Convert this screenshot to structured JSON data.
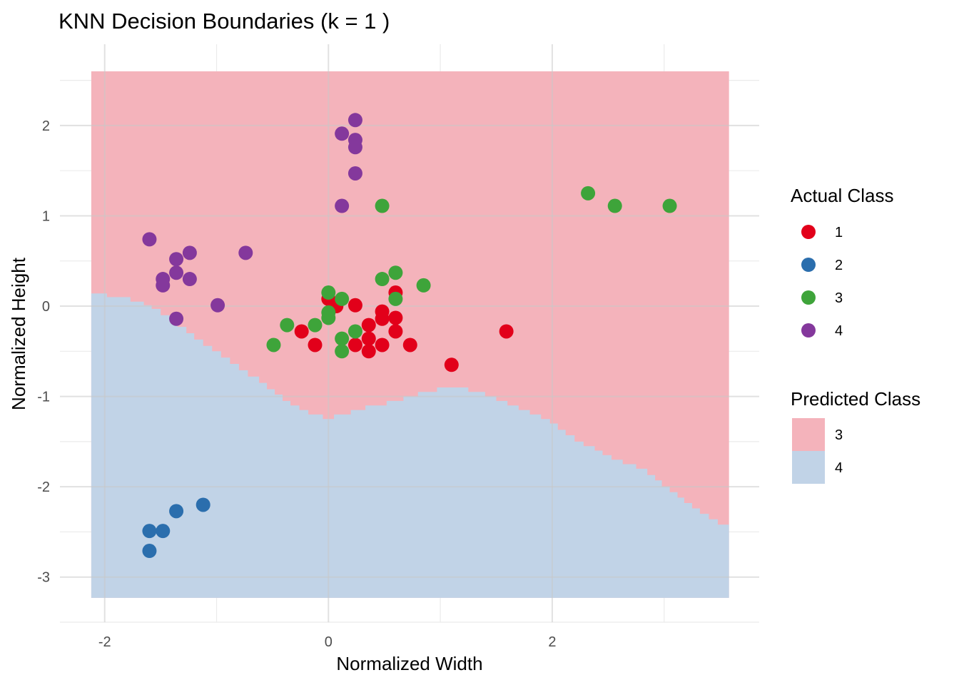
{
  "chart_data": {
    "type": "scatter",
    "title": "KNN Decision Boundaries (k = 1 )",
    "xlabel": "Normalized Width",
    "ylabel": "Normalized Height",
    "xlim": [
      -2.4,
      3.85
    ],
    "ylim": [
      -3.5,
      2.9
    ],
    "x_ticks": [
      -2,
      0,
      2
    ],
    "y_ticks": [
      2,
      1,
      0,
      -1,
      -2,
      -3
    ],
    "grid": true,
    "colors": {
      "region_3": "#f4b3bb",
      "region_4": "#c1d3e7",
      "class_1": "#e2001a",
      "class_2": "#2b6ead",
      "class_3": "#3ea43a",
      "class_4": "#84389c"
    },
    "decision_region": {
      "x_range": [
        -2.12,
        3.58
      ],
      "y_range": [
        -3.23,
        2.6
      ],
      "boundary": [
        [
          -2.12,
          0.14
        ],
        [
          -1.98,
          0.14
        ],
        [
          -1.98,
          0.1
        ],
        [
          -1.77,
          0.1
        ],
        [
          -1.77,
          0.05
        ],
        [
          -1.65,
          0.05
        ],
        [
          -1.65,
          0.01
        ],
        [
          -1.58,
          0.01
        ],
        [
          -1.58,
          -0.03
        ],
        [
          -1.5,
          -0.03
        ],
        [
          -1.5,
          -0.1
        ],
        [
          -1.42,
          -0.1
        ],
        [
          -1.42,
          -0.17
        ],
        [
          -1.35,
          -0.17
        ],
        [
          -1.35,
          -0.23
        ],
        [
          -1.27,
          -0.23
        ],
        [
          -1.27,
          -0.3
        ],
        [
          -1.2,
          -0.3
        ],
        [
          -1.2,
          -0.37
        ],
        [
          -1.12,
          -0.37
        ],
        [
          -1.12,
          -0.44
        ],
        [
          -1.04,
          -0.44
        ],
        [
          -1.04,
          -0.5
        ],
        [
          -0.96,
          -0.5
        ],
        [
          -0.96,
          -0.57
        ],
        [
          -0.88,
          -0.57
        ],
        [
          -0.88,
          -0.64
        ],
        [
          -0.8,
          -0.64
        ],
        [
          -0.8,
          -0.71
        ],
        [
          -0.72,
          -0.71
        ],
        [
          -0.72,
          -0.78
        ],
        [
          -0.62,
          -0.78
        ],
        [
          -0.62,
          -0.85
        ],
        [
          -0.55,
          -0.85
        ],
        [
          -0.55,
          -0.92
        ],
        [
          -0.48,
          -0.92
        ],
        [
          -0.48,
          -0.98
        ],
        [
          -0.41,
          -0.98
        ],
        [
          -0.41,
          -1.05
        ],
        [
          -0.34,
          -1.05
        ],
        [
          -0.34,
          -1.1
        ],
        [
          -0.26,
          -1.1
        ],
        [
          -0.26,
          -1.15
        ],
        [
          -0.18,
          -1.15
        ],
        [
          -0.18,
          -1.2
        ],
        [
          -0.05,
          -1.2
        ],
        [
          -0.05,
          -1.25
        ],
        [
          0.05,
          -1.25
        ],
        [
          0.05,
          -1.2
        ],
        [
          0.2,
          -1.2
        ],
        [
          0.2,
          -1.15
        ],
        [
          0.33,
          -1.15
        ],
        [
          0.33,
          -1.1
        ],
        [
          0.52,
          -1.1
        ],
        [
          0.52,
          -1.05
        ],
        [
          0.67,
          -1.05
        ],
        [
          0.67,
          -1.0
        ],
        [
          0.8,
          -1.0
        ],
        [
          0.8,
          -0.95
        ],
        [
          0.97,
          -0.95
        ],
        [
          0.97,
          -0.9
        ],
        [
          1.25,
          -0.9
        ],
        [
          1.25,
          -0.95
        ],
        [
          1.4,
          -0.95
        ],
        [
          1.4,
          -1.0
        ],
        [
          1.5,
          -1.0
        ],
        [
          1.5,
          -1.05
        ],
        [
          1.6,
          -1.05
        ],
        [
          1.6,
          -1.1
        ],
        [
          1.7,
          -1.1
        ],
        [
          1.7,
          -1.15
        ],
        [
          1.8,
          -1.15
        ],
        [
          1.8,
          -1.2
        ],
        [
          1.9,
          -1.2
        ],
        [
          1.9,
          -1.25
        ],
        [
          1.98,
          -1.25
        ],
        [
          1.98,
          -1.3
        ],
        [
          2.05,
          -1.3
        ],
        [
          2.05,
          -1.37
        ],
        [
          2.12,
          -1.37
        ],
        [
          2.12,
          -1.43
        ],
        [
          2.2,
          -1.43
        ],
        [
          2.2,
          -1.5
        ],
        [
          2.28,
          -1.5
        ],
        [
          2.28,
          -1.55
        ],
        [
          2.38,
          -1.55
        ],
        [
          2.38,
          -1.6
        ],
        [
          2.45,
          -1.6
        ],
        [
          2.45,
          -1.65
        ],
        [
          2.53,
          -1.65
        ],
        [
          2.53,
          -1.7
        ],
        [
          2.63,
          -1.7
        ],
        [
          2.63,
          -1.75
        ],
        [
          2.75,
          -1.75
        ],
        [
          2.75,
          -1.8
        ],
        [
          2.85,
          -1.8
        ],
        [
          2.85,
          -1.87
        ],
        [
          2.92,
          -1.87
        ],
        [
          2.92,
          -1.93
        ],
        [
          2.98,
          -1.93
        ],
        [
          2.98,
          -2.0
        ],
        [
          3.05,
          -2.0
        ],
        [
          3.05,
          -2.06
        ],
        [
          3.12,
          -2.06
        ],
        [
          3.12,
          -2.12
        ],
        [
          3.18,
          -2.12
        ],
        [
          3.18,
          -2.18
        ],
        [
          3.25,
          -2.18
        ],
        [
          3.25,
          -2.24
        ],
        [
          3.32,
          -2.24
        ],
        [
          3.32,
          -2.3
        ],
        [
          3.4,
          -2.3
        ],
        [
          3.4,
          -2.36
        ],
        [
          3.48,
          -2.36
        ],
        [
          3.48,
          -2.42
        ],
        [
          3.58,
          -2.42
        ]
      ]
    },
    "series": [
      {
        "class": "1",
        "points": [
          [
            0.0,
            0.08
          ],
          [
            0.07,
            0.0
          ],
          [
            0.24,
            0.01
          ],
          [
            0.48,
            -0.06
          ],
          [
            0.48,
            -0.14
          ],
          [
            0.6,
            0.15
          ],
          [
            0.6,
            -0.13
          ],
          [
            -0.24,
            -0.28
          ],
          [
            -0.12,
            -0.43
          ],
          [
            0.24,
            -0.43
          ],
          [
            0.36,
            -0.21
          ],
          [
            0.36,
            -0.36
          ],
          [
            0.36,
            -0.5
          ],
          [
            0.48,
            -0.43
          ],
          [
            0.6,
            -0.28
          ],
          [
            0.73,
            -0.43
          ],
          [
            1.1,
            -0.65
          ],
          [
            1.59,
            -0.28
          ]
        ]
      },
      {
        "class": "2",
        "points": [
          [
            -1.6,
            -2.49
          ],
          [
            -1.48,
            -2.49
          ],
          [
            -1.6,
            -2.71
          ],
          [
            -1.36,
            -2.27
          ],
          [
            -1.12,
            -2.2
          ]
        ]
      },
      {
        "class": "3",
        "points": [
          [
            -0.49,
            -0.43
          ],
          [
            -0.37,
            -0.21
          ],
          [
            -0.12,
            -0.21
          ],
          [
            0.0,
            0.15
          ],
          [
            0.0,
            -0.07
          ],
          [
            0.0,
            -0.13
          ],
          [
            0.12,
            0.08
          ],
          [
            0.12,
            -0.36
          ],
          [
            0.12,
            -0.5
          ],
          [
            0.24,
            -0.28
          ],
          [
            0.48,
            0.3
          ],
          [
            0.6,
            0.37
          ],
          [
            0.6,
            0.08
          ],
          [
            0.85,
            0.23
          ],
          [
            0.48,
            1.11
          ],
          [
            2.32,
            1.25
          ],
          [
            2.56,
            1.11
          ],
          [
            3.05,
            1.11
          ]
        ]
      },
      {
        "class": "4",
        "points": [
          [
            -1.6,
            0.74
          ],
          [
            -1.36,
            0.52
          ],
          [
            -1.24,
            0.59
          ],
          [
            -1.48,
            0.3
          ],
          [
            -1.48,
            0.23
          ],
          [
            -1.36,
            0.37
          ],
          [
            -1.24,
            0.3
          ],
          [
            -1.36,
            -0.14
          ],
          [
            -0.99,
            0.01
          ],
          [
            -0.74,
            0.59
          ],
          [
            0.12,
            1.91
          ],
          [
            0.24,
            2.06
          ],
          [
            0.24,
            1.84
          ],
          [
            0.24,
            1.76
          ],
          [
            0.24,
            1.47
          ],
          [
            0.12,
            1.11
          ]
        ]
      }
    ]
  },
  "legend": {
    "actual": {
      "title": "Actual Class",
      "entries": [
        {
          "label": "1",
          "color": "#e2001a"
        },
        {
          "label": "2",
          "color": "#2b6ead"
        },
        {
          "label": "3",
          "color": "#3ea43a"
        },
        {
          "label": "4",
          "color": "#84389c"
        }
      ]
    },
    "predicted": {
      "title": "Predicted Class",
      "entries": [
        {
          "label": "3",
          "color": "#f4b3bb"
        },
        {
          "label": "4",
          "color": "#c1d3e7"
        }
      ]
    }
  }
}
